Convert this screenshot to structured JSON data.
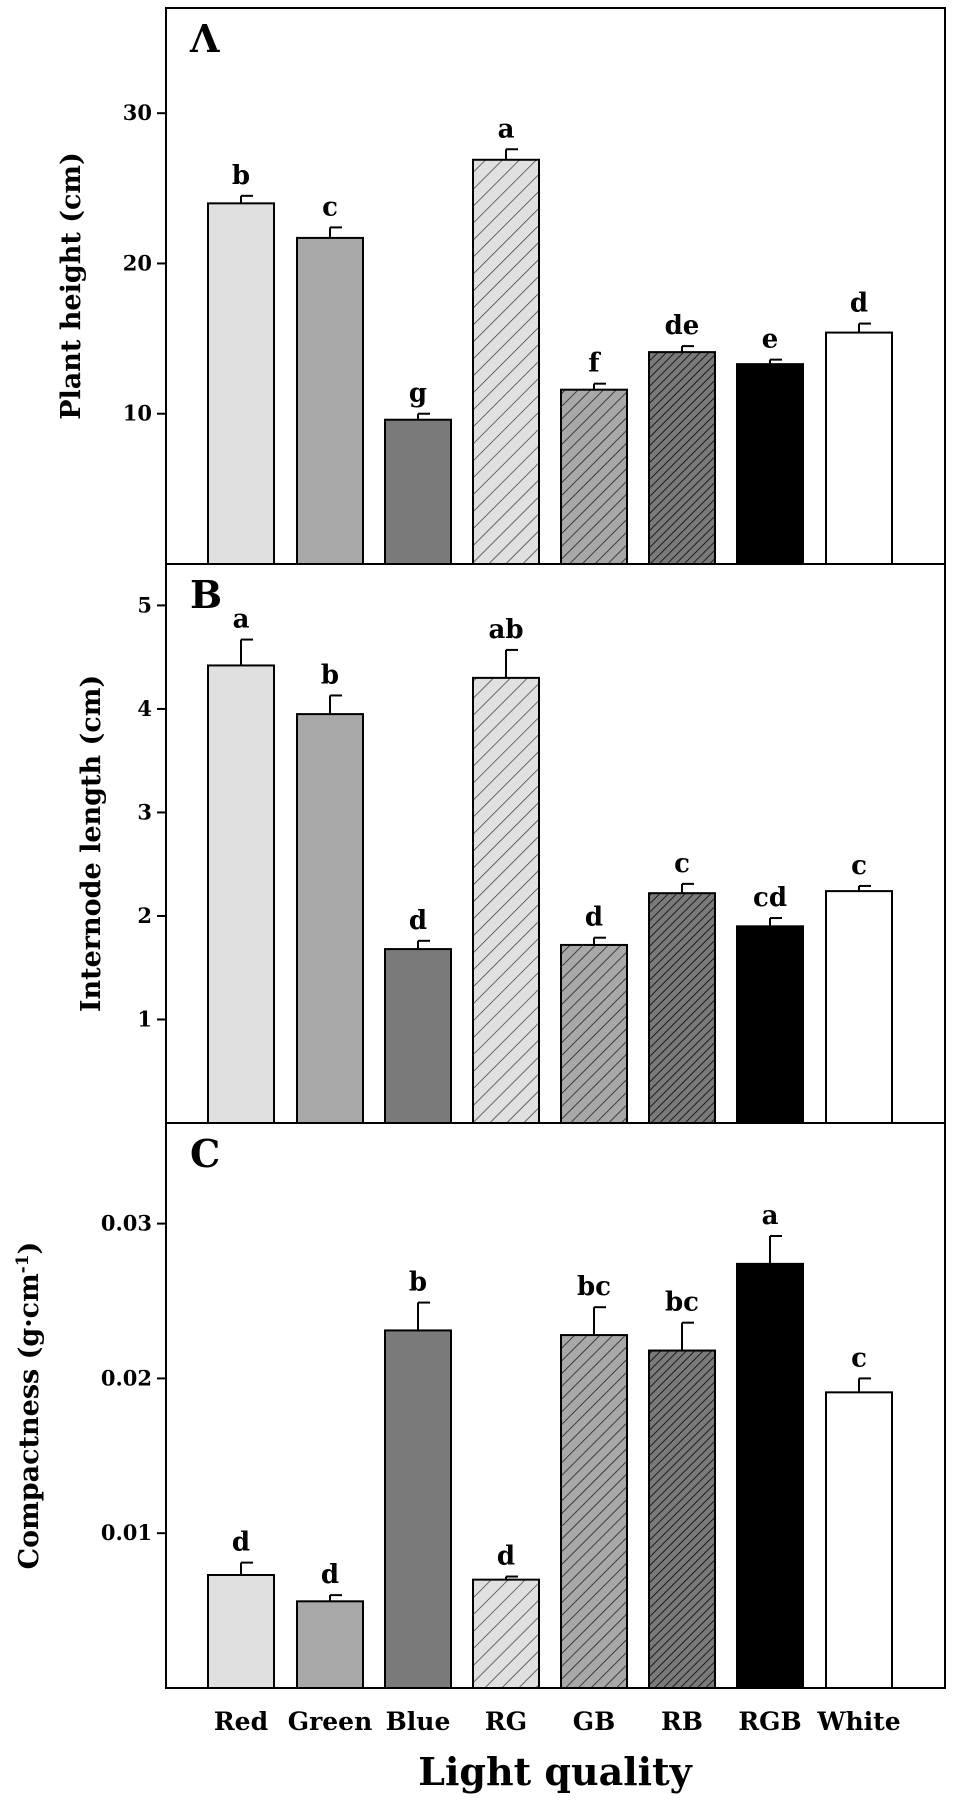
{
  "chart_data": [
    {
      "type": "bar",
      "panel": "A",
      "categories": [
        "Red",
        "Green",
        "Blue",
        "RG",
        "GB",
        "RB",
        "RGB",
        "White"
      ],
      "values": [
        24.0,
        21.7,
        9.6,
        26.9,
        11.6,
        14.1,
        13.3,
        15.4
      ],
      "errors": [
        0.5,
        0.7,
        0.4,
        0.7,
        0.4,
        0.4,
        0.3,
        0.6
      ],
      "significance": [
        "b",
        "c",
        "g",
        "a",
        "f",
        "de",
        "e",
        "d"
      ],
      "ylabel": "Plant height (cm)",
      "ylim": [
        0,
        37
      ],
      "yticks": [
        10,
        20,
        30
      ]
    },
    {
      "type": "bar",
      "panel": "B",
      "categories": [
        "Red",
        "Green",
        "Blue",
        "RG",
        "GB",
        "RB",
        "RGB",
        "White"
      ],
      "values": [
        4.42,
        3.95,
        1.68,
        4.3,
        1.72,
        2.22,
        1.9,
        2.24
      ],
      "errors": [
        0.25,
        0.18,
        0.08,
        0.27,
        0.07,
        0.09,
        0.08,
        0.05
      ],
      "significance": [
        "a",
        "b",
        "d",
        "ab",
        "d",
        "c",
        "cd",
        "c"
      ],
      "ylabel": "Internode length (cm)",
      "ylim": [
        0,
        5.4
      ],
      "yticks": [
        1,
        2,
        3,
        4,
        5
      ]
    },
    {
      "type": "bar",
      "panel": "C",
      "categories": [
        "Red",
        "Green",
        "Blue",
        "RG",
        "GB",
        "RB",
        "RGB",
        "White"
      ],
      "values": [
        0.0073,
        0.0056,
        0.0231,
        0.007,
        0.0228,
        0.0218,
        0.0274,
        0.0191
      ],
      "errors": [
        0.0008,
        0.0004,
        0.0018,
        0.0002,
        0.0018,
        0.0018,
        0.0018,
        0.0009
      ],
      "significance": [
        "d",
        "d",
        "b",
        "d",
        "bc",
        "bc",
        "a",
        "c"
      ],
      "ylabel": "Compactness (g·cm",
      "ylabel_sup": "-1",
      "ylabel_end": ")",
      "ylim": [
        0,
        0.0365
      ],
      "yticks": [
        0.01,
        0.02,
        0.03
      ],
      "ytick_labels": [
        "0.01",
        "0.02",
        "0.03"
      ]
    }
  ],
  "xlabel": "Light quality",
  "styles": {
    "fills": [
      "#e0e0e0",
      "#a8a8a8",
      "#7a7a7a",
      "#e0e0e0",
      "#a8a8a8",
      "#7a7a7a",
      "#000000",
      "#ffffff"
    ],
    "hatched": [
      false,
      false,
      false,
      true,
      true,
      true,
      false,
      false
    ]
  },
  "panel_letters": [
    "Λ",
    "B",
    "C"
  ]
}
